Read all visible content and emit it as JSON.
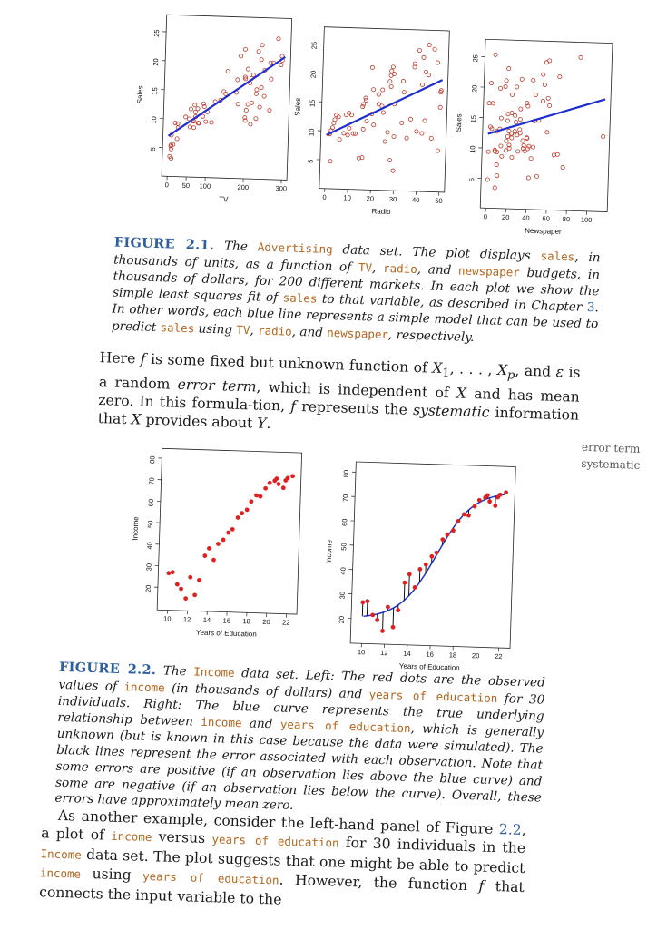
{
  "figure1": {
    "panels": [
      {
        "id": "tv",
        "xlabel": "TV",
        "ylabel": "Sales",
        "xticks": [
          "0",
          "50",
          "100",
          "200",
          "300"
        ],
        "yticks": [
          "5",
          "10",
          "15",
          "20",
          "25"
        ]
      },
      {
        "id": "radio",
        "xlabel": "Radio",
        "ylabel": "Sales",
        "xticks": [
          "0",
          "10",
          "20",
          "30",
          "40",
          "50"
        ],
        "yticks": [
          "5",
          "10",
          "15",
          "20",
          "25"
        ]
      },
      {
        "id": "newspaper",
        "xlabel": "Newspaper",
        "ylabel": "Sales",
        "xticks": [
          "0",
          "20",
          "40",
          "60",
          "80",
          "100"
        ],
        "yticks": [
          "5",
          "10",
          "15",
          "20",
          "25"
        ]
      }
    ],
    "caption": {
      "label": "FIGURE 2.1.",
      "t1": " The ",
      "c1": "Advertising",
      "t2": " data set. The plot displays ",
      "c2": "sales",
      "t3": ", in thousands of units, as a function of ",
      "c3": "TV",
      "t4": ", ",
      "c4": "radio",
      "t5": ", and ",
      "c5": "newspaper",
      "t6": " budgets, in thousands of dollars, for 200 different markets. In each plot we show the simple least squares fit of ",
      "c6": "sales",
      "t7": " to that variable, as described in Chapter ",
      "ref": "3",
      "t8": ". In other words, each blue line represents a simple model that can be used to predict ",
      "c7": "sales",
      "t9": " using ",
      "c8": "TV",
      "t10": ", ",
      "c9": "radio",
      "t11": ", and ",
      "c10": "newspaper",
      "t12": ", respectively."
    }
  },
  "para1": {
    "t1": "Here ",
    "f": "f",
    "t2": " is some fixed but unknown function of ",
    "x1": "X",
    "sub1": "1",
    "t3": ", . . . , ",
    "xp": "X",
    "subp": "p",
    "t4": ", and ",
    "eps": "ε",
    "t5": " is a random ",
    "err": "error term",
    "t6": ", which is independent of ",
    "X": "X",
    "t7": " and has mean zero. In this formula-tion, ",
    "f2": "f",
    "t8": " represents the ",
    "sys": "systematic",
    "t9": " information that ",
    "X2": "X",
    "t10": " provides about ",
    "Y": "Y",
    "t11": "."
  },
  "margin_notes": [
    "error term",
    "systematic"
  ],
  "figure2": {
    "panels": [
      {
        "id": "income-left",
        "xlabel": "Years of Education",
        "ylabel": "Income",
        "xticks": [
          "10",
          "12",
          "14",
          "16",
          "18",
          "20",
          "22"
        ],
        "yticks": [
          "20",
          "30",
          "40",
          "50",
          "60",
          "70",
          "80"
        ]
      },
      {
        "id": "income-right",
        "xlabel": "Years of Education",
        "ylabel": "Income",
        "xticks": [
          "10",
          "12",
          "14",
          "16",
          "18",
          "20",
          "22"
        ],
        "yticks": [
          "20",
          "30",
          "40",
          "50",
          "60",
          "70",
          "80"
        ]
      }
    ],
    "caption": {
      "label": "FIGURE 2.2.",
      "t1": " The ",
      "c1": "Income",
      "t2": " data set. Left: The red dots are the observed values of ",
      "c2": "income",
      "t3": " (in thousands of dollars) and ",
      "c3": "years of education",
      "t4": " for 30 individuals. Right: The blue curve represents the true underlying relationship between ",
      "c4": "income",
      "t5": " and ",
      "c5": "years of education",
      "t6": ", which is generally unknown (but is known in this case because the data were simulated). The black lines represent the error associated with each observation. Note that some errors are positive (if an observation lies above the blue curve) and some are negative (if an observation lies below the curve). Overall, these errors have approximately mean zero."
    }
  },
  "para2": {
    "t1": "As another example, consider the left-hand panel of Figure ",
    "ref": "2.2",
    "t2": ", a plot of ",
    "c1": "income",
    "t3": " versus ",
    "c2": "years of education",
    "t4": " for 30 individuals in the ",
    "c3": "Income",
    "t5": " data set. The plot suggests that one might be able to predict ",
    "c4": "income",
    "t6": " using ",
    "c5": "years of education",
    "t7": ". However, the function ",
    "f": "f",
    "t8": " that connects the input variable to the"
  },
  "chart_data": [
    {
      "type": "scatter",
      "panel": "tv",
      "xlabel": "TV",
      "ylabel": "Sales",
      "xlim": [
        0,
        300
      ],
      "ylim": [
        1,
        27
      ],
      "x": [
        230,
        44,
        17,
        151,
        180,
        8,
        57,
        120,
        8,
        199,
        66,
        214,
        24,
        97,
        204,
        195,
        67,
        281,
        69,
        147,
        218,
        237,
        13,
        228,
        62,
        263,
        142,
        240,
        248,
        70,
        292,
        75,
        112,
        265,
        214,
        90,
        9,
        228,
        56,
        210,
        202,
        177,
        293,
        206,
        25,
        175,
        89,
        239,
        227,
        66,
        100,
        216,
        200,
        23,
        262,
        198,
        7,
        184,
        197,
        79,
        53,
        238,
        248,
        5,
        92,
        77,
        134,
        8,
        290,
        270
      ],
      "y": [
        22.1,
        10.4,
        9.3,
        18.5,
        12.9,
        7.2,
        11.8,
        13.2,
        4.8,
        10.6,
        8.6,
        17.4,
        9.2,
        9.7,
        19,
        22.4,
        12.5,
        24.4,
        11.3,
        14.6,
        18,
        12.5,
        5.6,
        15.5,
        9.7,
        12,
        15,
        15.9,
        18.9,
        10.5,
        21.4,
        11.9,
        9.6,
        17.4,
        9.5,
        12.8,
        3.2,
        10.5,
        8.7,
        16.6,
        11.9,
        17.1,
        20.7,
        12.9,
        8.5,
        14.9,
        10.6,
        23.2,
        14.8,
        9.7,
        11.4,
        13.2,
        10.1,
        6.6,
        20.2,
        17.3,
        5.3,
        21.2,
        17.6,
        9.4,
        10.1,
        20.7,
        14.4,
        3.5,
        12.3,
        9.4,
        13.5,
        5.5,
        19.9,
        20.2
      ],
      "fit": {
        "intercept": 7.03,
        "slope": 0.0475
      }
    },
    {
      "type": "scatter",
      "panel": "radio",
      "xlabel": "Radio",
      "ylabel": "Sales",
      "xlim": [
        0,
        50
      ],
      "ylim": [
        1,
        27
      ],
      "x": [
        37.8,
        39.3,
        45.9,
        41.3,
        10.8,
        48.9,
        32.8,
        19.6,
        2.1,
        2.6,
        5.8,
        24,
        35.1,
        7.6,
        32.9,
        47.7,
        36.6,
        39.6,
        20.5,
        23.9,
        27.7,
        5.1,
        15.9,
        16.9,
        12.6,
        3.5,
        29.3,
        16.7,
        27.1,
        16,
        28.3,
        17.4,
        1.5,
        20,
        1.4,
        4.1,
        43.8,
        49.4,
        26.7,
        37.7,
        22.3,
        33.4,
        27.7,
        8.4,
        25.7,
        22.5,
        9.9,
        41.5,
        15.8,
        11.7,
        3.1,
        9.6,
        41.7,
        46.2,
        28.8,
        49.4,
        28.1,
        19.2,
        49.6,
        29.5,
        2,
        42.7,
        15.5,
        29.6,
        42.8,
        9.3,
        24.6,
        14.5,
        27.5,
        43.9
      ],
      "y": [
        22.1,
        10.4,
        9.3,
        18.5,
        12.9,
        7.2,
        11.8,
        13.2,
        4.8,
        10.6,
        8.6,
        17.4,
        9.2,
        9.7,
        19,
        22.4,
        12.5,
        24.4,
        11.3,
        14.6,
        18,
        12.5,
        5.6,
        15.5,
        9.7,
        12,
        15,
        15.9,
        18.9,
        10.5,
        21.4,
        11.9,
        9.6,
        17.4,
        9.5,
        12.8,
        25.4,
        14.7,
        10.1,
        21.5,
        16.6,
        17.1,
        20.7,
        12.9,
        8.5,
        14.9,
        10.6,
        23.2,
        14.8,
        9.7,
        11.4,
        13.2,
        10.1,
        24.7,
        20.2,
        17.3,
        5.3,
        21.2,
        17.6,
        9.4,
        10.1,
        20.7,
        14.4,
        3.5,
        12.3,
        9.4,
        13.5,
        5.5,
        19.9,
        20.2
      ],
      "fit": {
        "intercept": 9.31,
        "slope": 0.2025
      }
    },
    {
      "type": "scatter",
      "panel": "newspaper",
      "xlabel": "Newspaper",
      "ylabel": "Sales",
      "xlim": [
        0,
        115
      ],
      "ylim": [
        1,
        27
      ],
      "x": [
        69.2,
        45.1,
        69.3,
        58.5,
        58.4,
        75,
        23.5,
        11.6,
        1,
        21.2,
        24.2,
        4,
        65.9,
        7.2,
        46,
        52.9,
        114,
        55.8,
        18.3,
        19.1,
        53.4,
        23.5,
        49.6,
        26.2,
        18.3,
        19.5,
        12.6,
        22.9,
        22.9,
        40.8,
        43.2,
        38.6,
        30,
        0.3,
        7.4,
        8.5,
        5,
        45.7,
        35.1,
        32,
        31.6,
        38.7,
        1.8,
        26.4,
        43.3,
        31.5,
        35.7,
        18.5,
        49.9,
        36.8,
        34.6,
        3.6,
        39.6,
        58.7,
        15.9,
        60,
        41.4,
        16.6,
        37.7,
        9.3,
        21.4,
        54.7,
        27.3,
        8.4,
        28.9,
        0.9,
        2.2,
        10.2,
        11,
        27.2,
        38.7,
        31.7,
        19.3,
        31.3,
        13.1,
        89.4,
        20.7,
        14.2,
        9.4,
        23.1
      ],
      "y": [
        22.1,
        10.4,
        9.3,
        18.5,
        12.9,
        7.2,
        11.8,
        13.2,
        4.8,
        10.6,
        8.6,
        17.4,
        9.2,
        9.7,
        19,
        22.4,
        12.5,
        24.4,
        11.3,
        14.6,
        18,
        12.5,
        5.6,
        15.5,
        9.7,
        12,
        15,
        15.9,
        18.9,
        10.5,
        21.4,
        11.9,
        9.6,
        17.4,
        9.5,
        12.8,
        25.4,
        14.7,
        10.1,
        21.5,
        16.6,
        17.1,
        20.7,
        12.9,
        8.5,
        14.9,
        10.6,
        23.2,
        14.8,
        9.7,
        11.4,
        13.2,
        10.1,
        24.7,
        20.2,
        17.3,
        5.3,
        21.2,
        17.6,
        9.4,
        10.1,
        20.7,
        14.4,
        3.5,
        12.3,
        9.4,
        13.5,
        5.5,
        19.9,
        20.2,
        11.8,
        12.6,
        15.7,
        13.2,
        10.4,
        25.4,
        12.9,
        8.7,
        7.3,
        12.5
      ],
      "fit": {
        "intercept": 12.35,
        "slope": 0.0547
      }
    },
    {
      "type": "scatter",
      "panel": "income-left",
      "xlabel": "Years of Education",
      "ylabel": "Income",
      "xlim": [
        9.5,
        22.5
      ],
      "ylim": [
        12,
        82
      ],
      "x": [
        10,
        10.4,
        10.9,
        11.3,
        11.8,
        12.2,
        12.7,
        13.1,
        13.6,
        14,
        14.5,
        14.9,
        15.4,
        15.9,
        16.3,
        16.8,
        17.2,
        17.7,
        18.1,
        18.6,
        19,
        19.5,
        19.9,
        20.4,
        20.8,
        21.3,
        21.7,
        22.2,
        21.5,
        20.6
      ],
      "y": [
        26.7,
        27.2,
        21.6,
        19.6,
        15.2,
        25.1,
        16.9,
        23.9,
        35.3,
        38.8,
        33.5,
        41,
        43,
        46.4,
        48,
        53.5,
        55.6,
        57.3,
        61.2,
        64.1,
        63.7,
        67.5,
        70.1,
        71.2,
        69.7,
        68,
        72.6,
        73.6,
        71.5,
        72.2
      ]
    },
    {
      "type": "scatter",
      "panel": "income-right",
      "xlabel": "Years of Education",
      "ylabel": "Income",
      "xlim": [
        9.5,
        22.5
      ],
      "ylim": [
        12,
        82
      ],
      "x": [
        10,
        10.4,
        10.9,
        11.3,
        11.8,
        12.2,
        12.7,
        13.1,
        13.6,
        14,
        14.5,
        14.9,
        15.4,
        15.9,
        16.3,
        16.8,
        17.2,
        17.7,
        18.1,
        18.6,
        19,
        19.5,
        19.9,
        20.4,
        20.8,
        21.3,
        21.7,
        22.2,
        21.5,
        20.6
      ],
      "y": [
        26.7,
        27.2,
        21.6,
        19.6,
        15.2,
        25.1,
        16.9,
        23.9,
        35.3,
        38.8,
        33.5,
        41,
        43,
        46.4,
        48,
        53.5,
        55.6,
        57.3,
        61.2,
        64.1,
        63.7,
        67.5,
        70.1,
        71.2,
        69.7,
        68,
        72.6,
        73.6,
        71.5,
        72.2
      ],
      "true_curve": "logistic"
    }
  ]
}
